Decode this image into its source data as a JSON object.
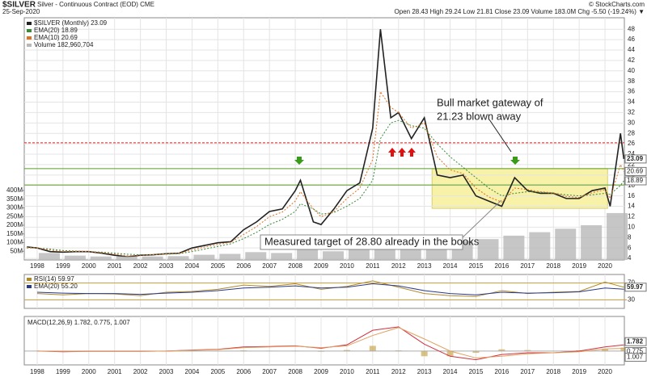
{
  "header": {
    "symbol": "$SILVER",
    "name": "Silver - Continuous Contract (EOD) CME",
    "date": "25-Sep-2020",
    "source": "© StockCharts.com",
    "quote": "Open 28.43  High 29.24  Low 21.81  Close 23.09  Volume 183.0M  Chg -5.50 (-19.24%) ▼"
  },
  "annotations": {
    "gateway": [
      "Bull market gateway of",
      "21.23 blown away"
    ],
    "target": "Measured target of 28.80 already in the books"
  },
  "chart_data": [
    {
      "type": "line",
      "x": [
        1997.6,
        1998,
        1998.5,
        1999,
        1999.5,
        2000,
        2000.5,
        2001,
        2001.5,
        2002,
        2002.5,
        2003,
        2003.5,
        2004,
        2004.5,
        2005,
        2005.5,
        2006,
        2006.5,
        2007,
        2007.5,
        2008,
        2008.2,
        2008.7,
        2009,
        2009.5,
        2010,
        2010.5,
        2011,
        2011.3,
        2011.7,
        2012,
        2012.5,
        2013,
        2013.5,
        2014,
        2014.5,
        2015,
        2015.5,
        2016,
        2016.5,
        2017,
        2017.5,
        2018,
        2018.5,
        2019,
        2019.5,
        2020,
        2020.2,
        2020.6,
        2020.73
      ],
      "series": [
        {
          "name": "$SILVER (Monthly) 23.09",
          "color": "#222222",
          "values": [
            6.2,
            6.0,
            5.3,
            5.2,
            5.3,
            5.3,
            5.0,
            4.6,
            4.3,
            4.6,
            4.7,
            4.9,
            5.0,
            6.0,
            6.5,
            7.0,
            7.2,
            9.5,
            11.0,
            13.0,
            13.5,
            17.0,
            19.0,
            11.0,
            10.5,
            13.5,
            17.0,
            18.5,
            29.0,
            48.0,
            31.0,
            32.0,
            27.0,
            31.0,
            20.0,
            19.5,
            20.0,
            16.0,
            15.0,
            14.0,
            19.5,
            17.0,
            16.5,
            16.5,
            15.5,
            15.5,
            17.0,
            17.5,
            14.0,
            28.0,
            23.09
          ]
        },
        {
          "name": "EMA(20) 18.89",
          "color": "#3a8a3a",
          "dash": true,
          "values": [
            6.0,
            6.0,
            5.8,
            5.5,
            5.4,
            5.3,
            5.2,
            5.0,
            4.8,
            4.7,
            4.7,
            4.8,
            4.9,
            5.3,
            5.8,
            6.3,
            6.8,
            7.8,
            9.0,
            10.5,
            11.5,
            13.0,
            14.5,
            13.5,
            12.5,
            12.8,
            14.0,
            15.5,
            19.0,
            27.0,
            30.0,
            30.5,
            29.5,
            29.0,
            26.0,
            23.5,
            21.5,
            19.5,
            17.5,
            16.0,
            16.5,
            16.8,
            16.7,
            16.5,
            16.2,
            16.0,
            16.2,
            16.5,
            16.3,
            18.0,
            18.89
          ]
        },
        {
          "name": "EMA(10) 20.69",
          "color": "#e07020",
          "dash": true,
          "values": [
            6.1,
            6.0,
            5.6,
            5.3,
            5.3,
            5.3,
            5.1,
            4.8,
            4.5,
            4.6,
            4.7,
            4.9,
            5.0,
            5.6,
            6.2,
            6.7,
            7.1,
            8.6,
            10.1,
            12.0,
            12.9,
            15.0,
            16.8,
            13.5,
            12.0,
            13.0,
            15.5,
            17.5,
            23.0,
            36.0,
            33.0,
            32.0,
            29.0,
            30.0,
            23.5,
            21.0,
            20.3,
            17.5,
            15.8,
            14.8,
            17.5,
            17.2,
            16.8,
            16.6,
            15.9,
            15.7,
            16.6,
            17.2,
            15.5,
            22.0,
            20.69
          ]
        }
      ],
      "xlim": [
        1997.5,
        2020.75
      ],
      "xticks": [
        1998,
        1999,
        2000,
        2001,
        2002,
        2003,
        2004,
        2005,
        2006,
        2007,
        2008,
        2009,
        2010,
        2011,
        2012,
        2013,
        2014,
        2015,
        2016,
        2017,
        2018,
        2019,
        2020
      ],
      "ylim": [
        3.7,
        50.2
      ],
      "yticks": [
        4,
        6,
        8,
        10,
        12,
        14,
        16,
        18,
        20,
        22,
        24,
        26,
        28,
        30,
        32,
        34,
        36,
        38,
        40,
        42,
        44,
        46,
        48
      ],
      "grid": true,
      "hlines": [
        {
          "value": 26.2,
          "color": "#e02020",
          "dash": true
        },
        {
          "value": 21.23,
          "color": "#5a9e2a"
        },
        {
          "value": 18.1,
          "color": "#5a9e2a"
        }
      ],
      "highlight": {
        "xlim": [
          2013.3,
          2020.1
        ],
        "ylim": [
          13.6,
          21.23
        ],
        "color": "#f8f1a8"
      },
      "right_labels": [
        23.09,
        20.69,
        18.89
      ]
    },
    {
      "type": "bar",
      "x": [
        1998,
        1999,
        2000,
        2001,
        2002,
        2003,
        2004,
        2005,
        2006,
        2007,
        2008,
        2009,
        2010,
        2011,
        2012,
        2013,
        2014,
        2015,
        2016,
        2017,
        2018,
        2019,
        2020
      ],
      "series": [
        {
          "name": "Volume 182,960,704",
          "color": "#b8b8b8",
          "values": [
            40000000,
            25000000,
            20000000,
            20000000,
            20000000,
            22000000,
            30000000,
            35000000,
            45000000,
            40000000,
            60000000,
            50000000,
            60000000,
            130000000,
            90000000,
            100000000,
            110000000,
            120000000,
            140000000,
            160000000,
            180000000,
            200000000,
            270000000
          ]
        }
      ],
      "ylim": [
        0,
        1395000000
      ],
      "yticks": [
        {
          "value": 50000000,
          "label": "50M"
        },
        {
          "value": 100000000,
          "label": "100M"
        },
        {
          "value": 150000000,
          "label": "150M"
        },
        {
          "value": 200000000,
          "label": "200M"
        },
        {
          "value": 250000000,
          "label": "250M"
        },
        {
          "value": 300000000,
          "label": "300M"
        },
        {
          "value": 350000000,
          "label": "350M"
        },
        {
          "value": 400000000,
          "label": "400M"
        }
      ]
    },
    {
      "type": "line",
      "x": [
        1998,
        1999,
        2000,
        2001,
        2002,
        2003,
        2004,
        2005,
        2006,
        2007,
        2008,
        2009,
        2010,
        2011,
        2012,
        2013,
        2014,
        2015,
        2016,
        2017,
        2018,
        2019,
        2020,
        2020.73
      ],
      "series": [
        {
          "name": "RSI(14) 59.97",
          "color": "#b08a2a",
          "values": [
            45,
            42,
            45,
            44,
            40,
            48,
            50,
            55,
            65,
            62,
            68,
            55,
            62,
            75,
            60,
            45,
            40,
            38,
            52,
            45,
            48,
            50,
            72,
            59.97
          ]
        },
        {
          "name": "EMA(20) 55.20",
          "color": "#2a3a8a",
          "values": [
            48,
            46,
            45,
            45,
            43,
            46,
            48,
            52,
            58,
            60,
            63,
            58,
            60,
            68,
            63,
            52,
            45,
            42,
            48,
            46,
            47,
            49,
            58,
            55.2
          ]
        }
      ],
      "ylim": [
        10,
        90
      ],
      "yticks": [
        30,
        70
      ],
      "right_labels": [
        59.97
      ]
    },
    {
      "type": "line",
      "label": "MACD(12,26,9) 1.782, 0.775, 1.007",
      "x": [
        1998,
        1999,
        2000,
        2001,
        2002,
        2003,
        2004,
        2005,
        2006,
        2007,
        2008,
        2009,
        2010,
        2011,
        2012,
        2013,
        2014,
        2015,
        2016,
        2017,
        2018,
        2019,
        2020,
        2020.73
      ],
      "series": [
        {
          "color": "#d03040",
          "values": [
            0,
            -0.2,
            -0.1,
            -0.1,
            -0.1,
            0,
            0.3,
            0.5,
            1.2,
            1.3,
            1.5,
            0.8,
            1.8,
            6,
            7,
            2,
            -1.5,
            -2.5,
            -1,
            -0.5,
            -0.5,
            0,
            1.2,
            1.782
          ]
        },
        {
          "color": "#e0a060",
          "values": [
            0,
            -0.1,
            -0.1,
            -0.1,
            -0.1,
            0,
            0.2,
            0.4,
            1,
            1.2,
            1.4,
            1,
            1.5,
            4.5,
            6.8,
            3.5,
            0,
            -2,
            -1.5,
            -0.8,
            -0.5,
            -0.2,
            0.6,
            0.775
          ]
        }
      ],
      "histogram": {
        "color": "#c9a850",
        "values": [
          0,
          -0.1,
          0,
          0,
          0,
          0,
          0.1,
          0.1,
          0.2,
          0.1,
          0.1,
          -0.2,
          0.3,
          1.5,
          0.2,
          -1.5,
          -1.5,
          -0.5,
          0.5,
          0.3,
          0,
          0.2,
          0.6,
          1.007
        ]
      },
      "ylim": [
        -4,
        10
      ],
      "right_labels": [
        1.782,
        0.775,
        1.007
      ]
    }
  ]
}
